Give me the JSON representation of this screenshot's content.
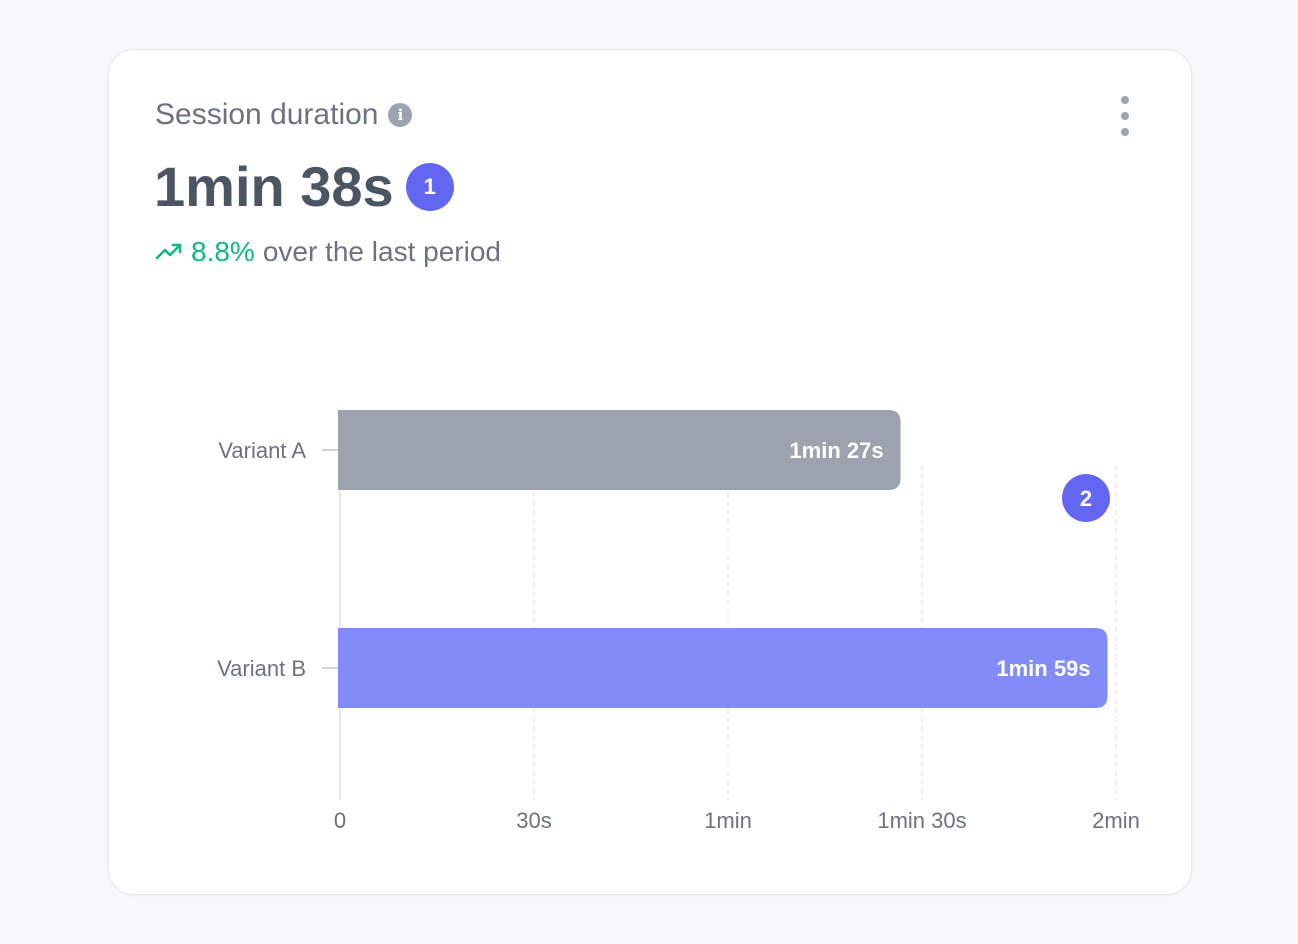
{
  "card": {
    "title": "Session duration",
    "value": "1min 38s",
    "value_badge": "1",
    "trend_pct": "8.8%",
    "trend_text": "over the last period",
    "chart_badge": "2"
  },
  "colors": {
    "accent": "#6366f1",
    "positive": "#10b981",
    "bar_a": "#9ca3af",
    "bar_b": "#818cf8"
  },
  "chart_data": {
    "type": "bar",
    "orientation": "horizontal",
    "categories": [
      "Variant A",
      "Variant B"
    ],
    "values": [
      87,
      119
    ],
    "value_labels": [
      "1min 27s",
      "1min 59s"
    ],
    "unit": "seconds",
    "xlim": [
      0,
      120
    ],
    "xticks": [
      0,
      30,
      60,
      90,
      120
    ],
    "xtick_labels": [
      "0",
      "30s",
      "1min",
      "1min 30s",
      "2min"
    ],
    "grid": true
  }
}
